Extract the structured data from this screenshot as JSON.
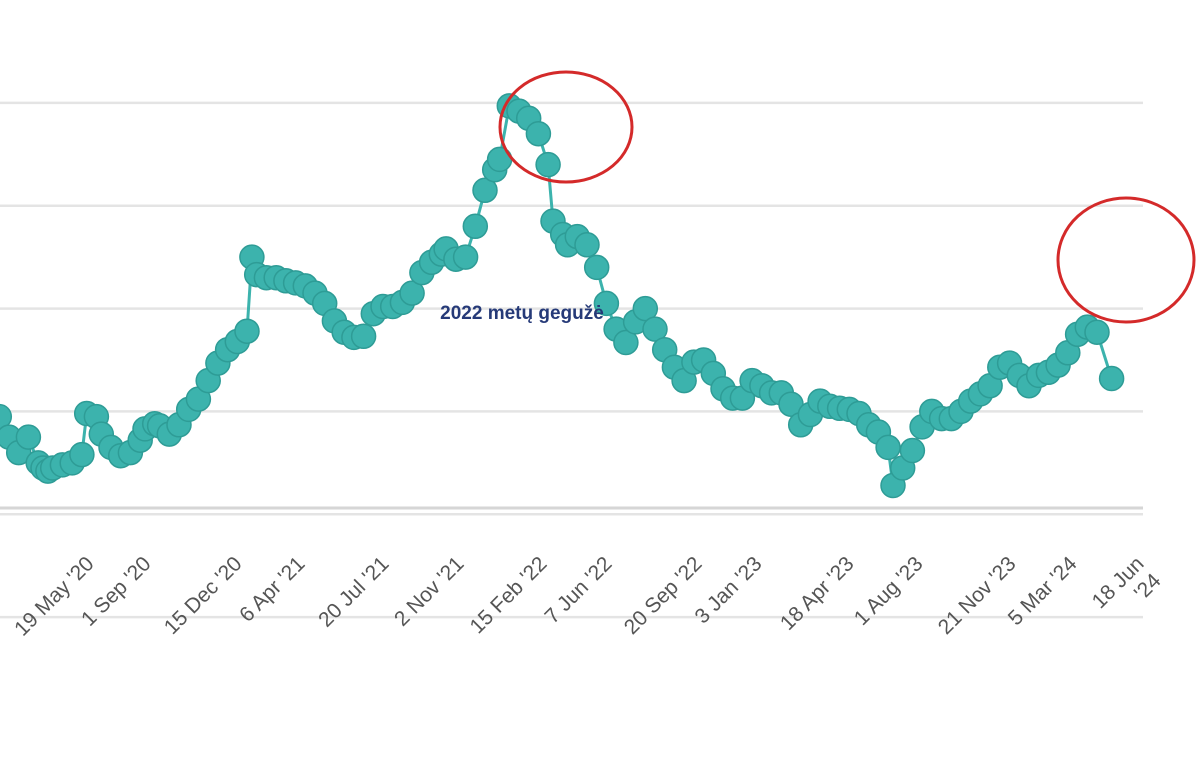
{
  "chart_data": {
    "type": "line",
    "title": "",
    "xlabel": "",
    "ylabel": "",
    "grid": true,
    "legend": "none",
    "series_color": "#3cb3ad",
    "highlight_color": "#d42a2a",
    "annotation_color": "#263a78",
    "x_ticks": [
      "19 May '20",
      "1 Sep '20",
      "15 Dec '20",
      "6 Apr '21",
      "20 Jul '21",
      "2 Nov '21",
      "15 Feb '22",
      "7 Jun '22",
      "20 Sep '22",
      "3 Jan '23",
      "18 Apr '23",
      "1 Aug '23",
      "21 Nov '23",
      "5 Mar '24",
      "18 Jun '24"
    ],
    "x_range": [
      "2020-02-05",
      "2024-08-05"
    ],
    "y_range": [
      0,
      7
    ],
    "annotation": {
      "text": "2022 metų gegužė"
    },
    "highlights": [
      "2022-05",
      "2024-06"
    ],
    "series": [
      {
        "values": [
          [
            "2020-02-04",
            2.95
          ],
          [
            "2020-02-18",
            2.75
          ],
          [
            "2020-03-03",
            2.6
          ],
          [
            "2020-03-17",
            2.75
          ],
          [
            "2020-03-31",
            2.5
          ],
          [
            "2020-04-07",
            2.45
          ],
          [
            "2020-04-14",
            2.42
          ],
          [
            "2020-04-21",
            2.45
          ],
          [
            "2020-05-05",
            2.48
          ],
          [
            "2020-05-19",
            2.5
          ],
          [
            "2020-06-02",
            2.58
          ],
          [
            "2020-06-09",
            2.98
          ],
          [
            "2020-06-23",
            2.95
          ],
          [
            "2020-06-30",
            2.78
          ],
          [
            "2020-07-14",
            2.65
          ],
          [
            "2020-07-28",
            2.57
          ],
          [
            "2020-08-11",
            2.6
          ],
          [
            "2020-08-25",
            2.72
          ],
          [
            "2020-09-01",
            2.83
          ],
          [
            "2020-09-15",
            2.88
          ],
          [
            "2020-09-22",
            2.86
          ],
          [
            "2020-10-06",
            2.78
          ],
          [
            "2020-10-20",
            2.87
          ],
          [
            "2020-11-03",
            3.02
          ],
          [
            "2020-11-17",
            3.12
          ],
          [
            "2020-12-01",
            3.3
          ],
          [
            "2020-12-15",
            3.47
          ],
          [
            "2020-12-29",
            3.6
          ],
          [
            "2021-01-12",
            3.68
          ],
          [
            "2021-01-26",
            3.78
          ],
          [
            "2021-02-02",
            4.5
          ],
          [
            "2021-02-09",
            4.33
          ],
          [
            "2021-02-23",
            4.3
          ],
          [
            "2021-03-09",
            4.3
          ],
          [
            "2021-03-23",
            4.27
          ],
          [
            "2021-04-06",
            4.25
          ],
          [
            "2021-04-20",
            4.22
          ],
          [
            "2021-05-04",
            4.15
          ],
          [
            "2021-05-18",
            4.05
          ],
          [
            "2021-06-01",
            3.88
          ],
          [
            "2021-06-15",
            3.77
          ],
          [
            "2021-06-29",
            3.72
          ],
          [
            "2021-07-13",
            3.73
          ],
          [
            "2021-07-27",
            3.95
          ],
          [
            "2021-08-10",
            4.02
          ],
          [
            "2021-08-24",
            4.02
          ],
          [
            "2021-09-07",
            4.06
          ],
          [
            "2021-09-21",
            4.15
          ],
          [
            "2021-10-05",
            4.35
          ],
          [
            "2021-10-19",
            4.45
          ],
          [
            "2021-11-02",
            4.53
          ],
          [
            "2021-11-09",
            4.58
          ],
          [
            "2021-11-23",
            4.48
          ],
          [
            "2021-12-07",
            4.5
          ],
          [
            "2021-12-21",
            4.8
          ],
          [
            "2022-01-04",
            5.15
          ],
          [
            "2022-01-18",
            5.35
          ],
          [
            "2022-01-25",
            5.45
          ],
          [
            "2022-02-08",
            5.97
          ],
          [
            "2022-02-22",
            5.92
          ],
          [
            "2022-03-08",
            5.85
          ],
          [
            "2022-03-22",
            5.7
          ],
          [
            "2022-04-05",
            5.4
          ],
          [
            "2022-04-12",
            4.85
          ],
          [
            "2022-04-26",
            4.72
          ],
          [
            "2022-05-03",
            4.62
          ],
          [
            "2022-05-17",
            4.7
          ],
          [
            "2022-05-31",
            4.62
          ],
          [
            "2022-06-14",
            4.4
          ],
          [
            "2022-06-28",
            4.05
          ],
          [
            "2022-07-12",
            3.8
          ],
          [
            "2022-07-26",
            3.67
          ],
          [
            "2022-08-09",
            3.87
          ],
          [
            "2022-08-23",
            4.0
          ],
          [
            "2022-09-06",
            3.8
          ],
          [
            "2022-09-20",
            3.6
          ],
          [
            "2022-10-04",
            3.43
          ],
          [
            "2022-10-18",
            3.3
          ],
          [
            "2022-11-01",
            3.48
          ],
          [
            "2022-11-15",
            3.5
          ],
          [
            "2022-11-29",
            3.37
          ],
          [
            "2022-12-13",
            3.22
          ],
          [
            "2022-12-27",
            3.13
          ],
          [
            "2023-01-10",
            3.13
          ],
          [
            "2023-01-24",
            3.3
          ],
          [
            "2023-02-07",
            3.25
          ],
          [
            "2023-02-21",
            3.18
          ],
          [
            "2023-03-07",
            3.18
          ],
          [
            "2023-03-21",
            3.07
          ],
          [
            "2023-04-04",
            2.87
          ],
          [
            "2023-04-18",
            2.97
          ],
          [
            "2023-05-02",
            3.1
          ],
          [
            "2023-05-16",
            3.05
          ],
          [
            "2023-05-30",
            3.03
          ],
          [
            "2023-06-13",
            3.02
          ],
          [
            "2023-06-27",
            2.98
          ],
          [
            "2023-07-11",
            2.87
          ],
          [
            "2023-07-25",
            2.8
          ],
          [
            "2023-08-08",
            2.65
          ],
          [
            "2023-08-15",
            2.28
          ],
          [
            "2023-08-29",
            2.45
          ],
          [
            "2023-09-12",
            2.62
          ],
          [
            "2023-09-26",
            2.85
          ],
          [
            "2023-10-10",
            3.0
          ],
          [
            "2023-10-24",
            2.93
          ],
          [
            "2023-11-07",
            2.93
          ],
          [
            "2023-11-21",
            3.0
          ],
          [
            "2023-12-05",
            3.1
          ],
          [
            "2023-12-19",
            3.17
          ],
          [
            "2024-01-02",
            3.25
          ],
          [
            "2024-01-16",
            3.43
          ],
          [
            "2024-01-30",
            3.47
          ],
          [
            "2024-02-13",
            3.35
          ],
          [
            "2024-02-27",
            3.25
          ],
          [
            "2024-03-12",
            3.35
          ],
          [
            "2024-03-26",
            3.38
          ],
          [
            "2024-04-09",
            3.45
          ],
          [
            "2024-04-23",
            3.57
          ],
          [
            "2024-05-07",
            3.75
          ],
          [
            "2024-05-21",
            3.82
          ],
          [
            "2024-06-04",
            3.77
          ],
          [
            "2024-06-25",
            3.32
          ]
        ]
      }
    ]
  }
}
